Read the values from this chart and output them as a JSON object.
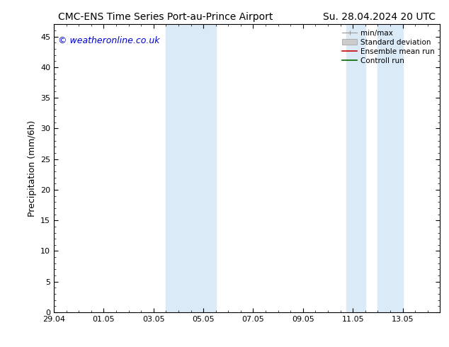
{
  "title_left": "CMC-ENS Time Series Port-au-Prince Airport",
  "title_right": "Su. 28.04.2024 20 UTC",
  "ylabel": "Precipitation (mm/6h)",
  "watermark": "© weatheronline.co.uk",
  "watermark_color": "#0000cc",
  "ylim": [
    0,
    47
  ],
  "yticks": [
    0,
    5,
    10,
    15,
    20,
    25,
    30,
    35,
    40,
    45
  ],
  "bg_color": "#ffffff",
  "plot_bg_color": "#ffffff",
  "band_color": "#daeaf7",
  "band_regions": [
    [
      4.5,
      5.5
    ],
    [
      5.5,
      6.5
    ],
    [
      11.75,
      12.5
    ],
    [
      13.0,
      14.0
    ]
  ],
  "xtick_labels": [
    "29.04",
    "01.05",
    "03.05",
    "05.05",
    "07.05",
    "09.05",
    "11.05",
    "13.05"
  ],
  "xtick_positions": [
    0,
    2,
    4,
    6,
    8,
    10,
    12,
    14
  ],
  "x_range": [
    0,
    15.5
  ],
  "title_fontsize": 10,
  "tick_fontsize": 8,
  "ylabel_fontsize": 9,
  "watermark_fontsize": 9,
  "legend_fontsize": 7.5
}
